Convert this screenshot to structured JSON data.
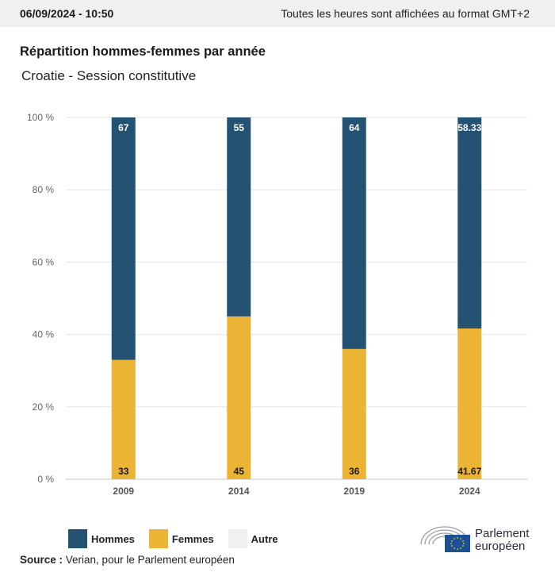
{
  "header": {
    "timestamp": "06/09/2024 - 10:50",
    "timezone_note": "Toutes les heures sont affichées au format GMT+2"
  },
  "chart_title": "Répartition hommes-femmes par année",
  "chart_subtitle": "Croatie - Session constitutive",
  "chart_data": {
    "type": "bar",
    "stacked": true,
    "percent": true,
    "categories": [
      "2009",
      "2014",
      "2019",
      "2024"
    ],
    "series": [
      {
        "name": "Femmes",
        "color": "#ebb434",
        "values": [
          33,
          45,
          36,
          41.67
        ]
      },
      {
        "name": "Hommes",
        "color": "#235273",
        "values": [
          67,
          55,
          64,
          58.33
        ]
      },
      {
        "name": "Autre",
        "color": "#f0f0f0",
        "values": [
          0,
          0,
          0,
          0
        ]
      }
    ],
    "value_labels": {
      "Femmes": [
        "33",
        "45",
        "36",
        "41.67"
      ],
      "Hommes": [
        "67",
        "55",
        "64",
        "58.33"
      ]
    },
    "y_ticks": [
      "0 %",
      "20 %",
      "40 %",
      "60 %",
      "80 %",
      "100 %"
    ],
    "y_tick_values": [
      0,
      20,
      40,
      60,
      80,
      100
    ],
    "ylim": [
      0,
      100
    ],
    "grid": true,
    "legend_placement": "bottom-left"
  },
  "legend": [
    {
      "label": "Hommes",
      "color": "#235273"
    },
    {
      "label": "Femmes",
      "color": "#ebb434"
    },
    {
      "label": "Autre",
      "color": "#f0f0f0"
    }
  ],
  "source": {
    "label": "Source :",
    "text": "Verian, pour le Parlement européen"
  },
  "logo": {
    "line1": "Parlement",
    "line2": "européen"
  }
}
